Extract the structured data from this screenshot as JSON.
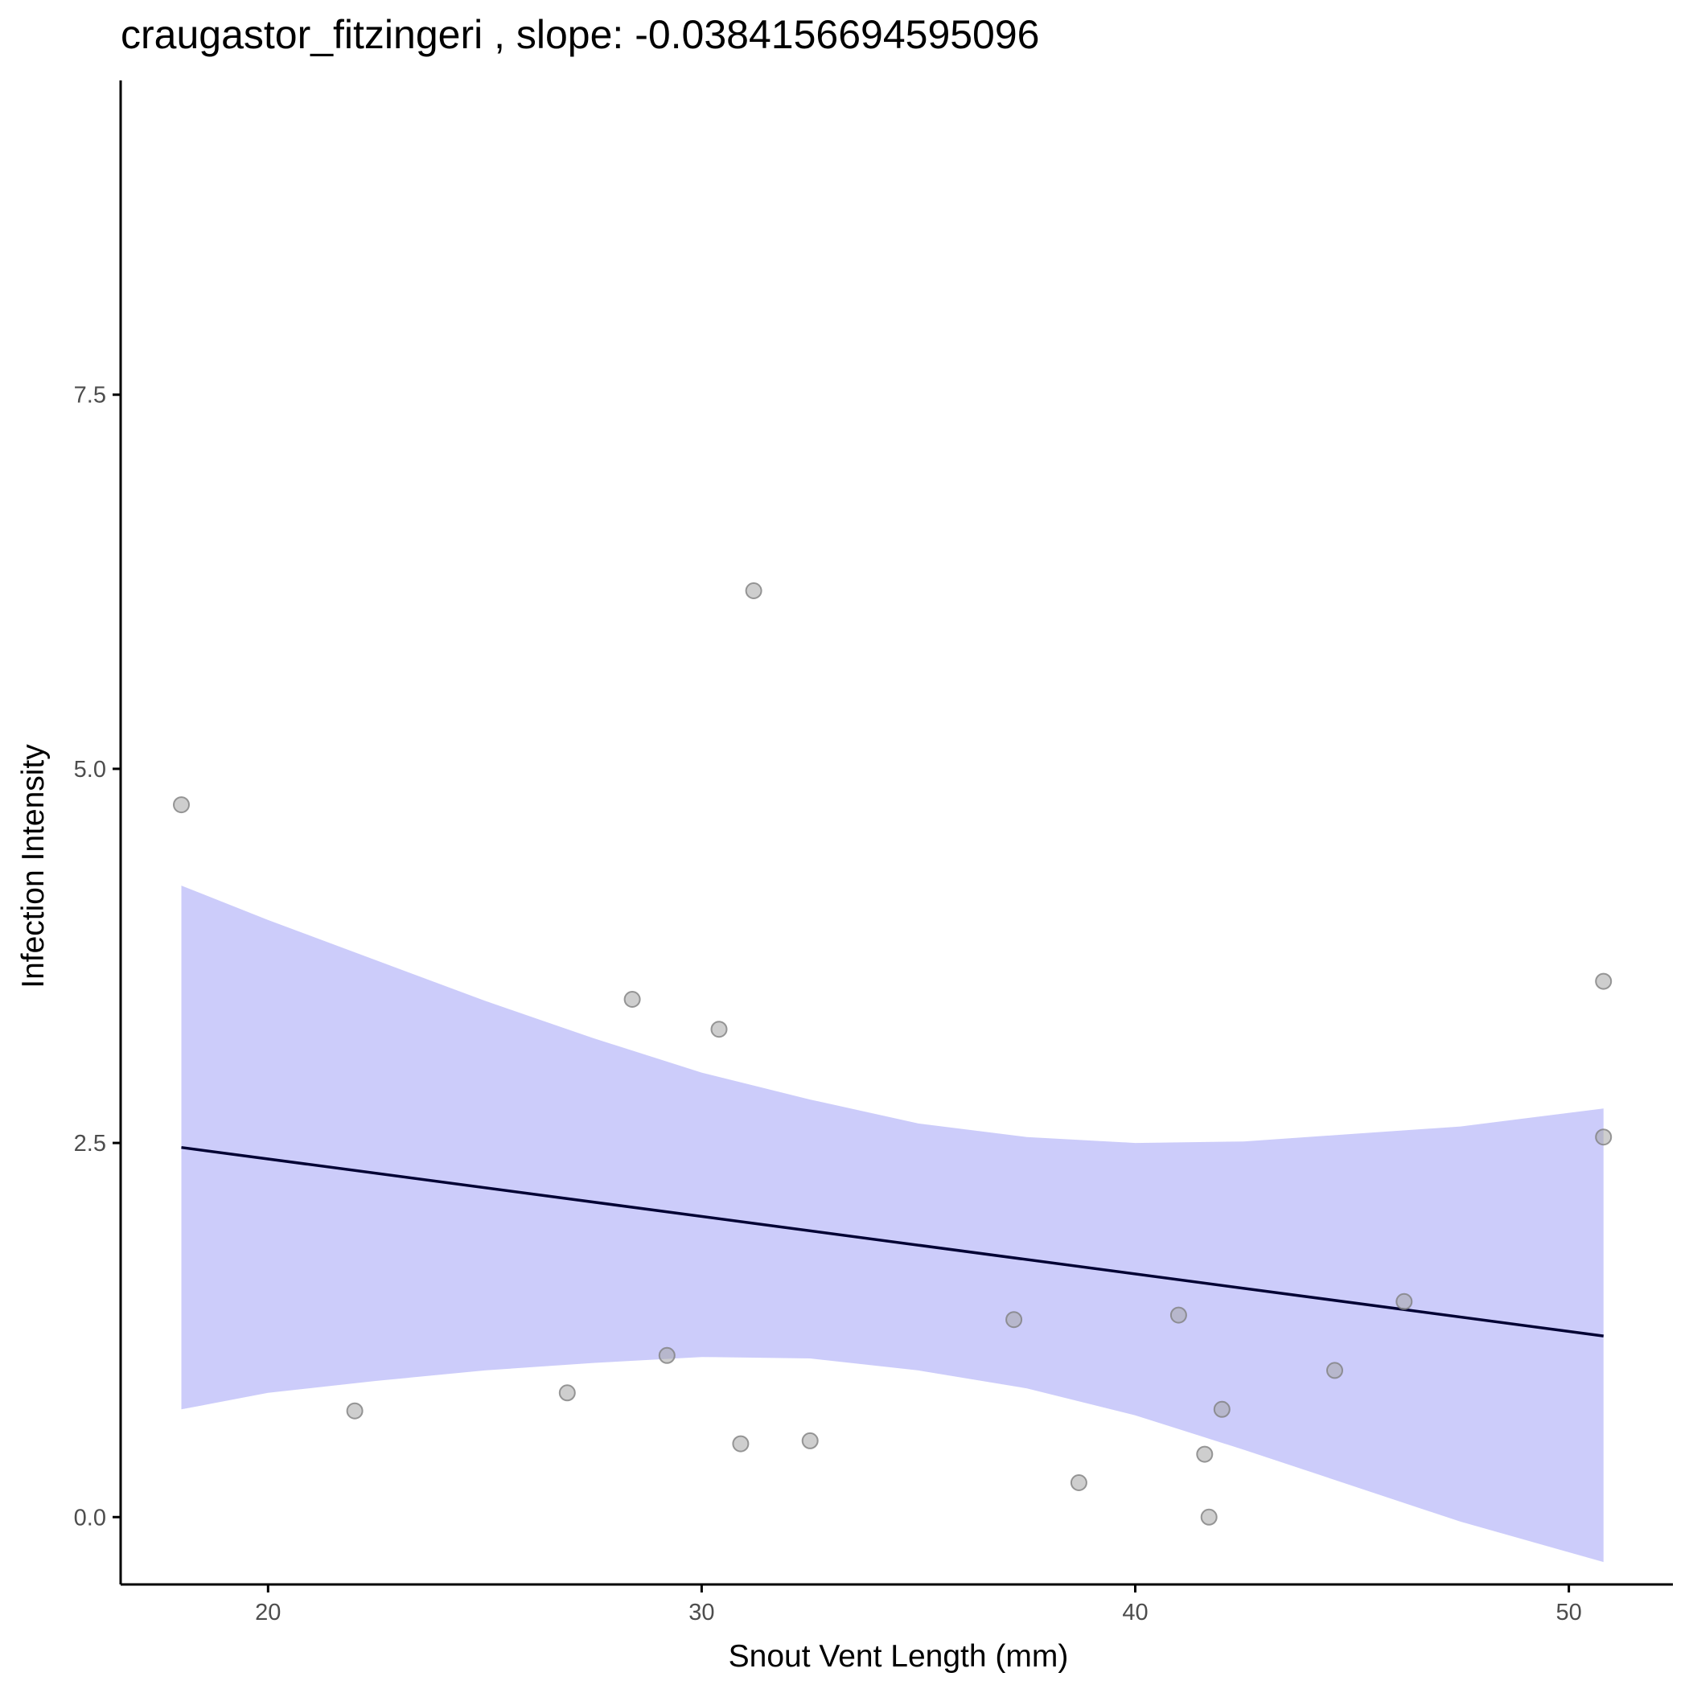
{
  "chart_data": {
    "type": "scatter",
    "title": "craugastor_fitzingeri , slope: -0.0384156694595096",
    "xlabel": "Snout Vent Length (mm)",
    "ylabel": "Infection Intensity",
    "xlim": [
      16.6,
      52.4
    ],
    "ylim": [
      -0.45,
      9.6
    ],
    "x_ticks": [
      20,
      30,
      40,
      50
    ],
    "x_tick_labels": [
      "20",
      "30",
      "40",
      "50"
    ],
    "y_ticks": [
      0.0,
      2.5,
      5.0,
      7.5
    ],
    "y_tick_labels": [
      "0.0",
      "2.5",
      "5.0",
      "7.5"
    ],
    "grid": false,
    "legend": "none",
    "points": [
      {
        "x": 18.0,
        "y": 4.76
      },
      {
        "x": 22.0,
        "y": 0.71
      },
      {
        "x": 26.9,
        "y": 0.83
      },
      {
        "x": 28.4,
        "y": 3.46
      },
      {
        "x": 29.2,
        "y": 1.08
      },
      {
        "x": 30.4,
        "y": 3.26
      },
      {
        "x": 30.9,
        "y": 0.49
      },
      {
        "x": 31.2,
        "y": 6.19
      },
      {
        "x": 32.5,
        "y": 0.51
      },
      {
        "x": 37.2,
        "y": 1.32
      },
      {
        "x": 38.7,
        "y": 0.23
      },
      {
        "x": 41.0,
        "y": 1.35
      },
      {
        "x": 41.6,
        "y": 0.42
      },
      {
        "x": 41.7,
        "y": 0.0
      },
      {
        "x": 42.0,
        "y": 0.72
      },
      {
        "x": 44.6,
        "y": 0.98
      },
      {
        "x": 46.2,
        "y": 1.44
      },
      {
        "x": 50.8,
        "y": 3.58
      },
      {
        "x": 50.8,
        "y": 2.54
      }
    ],
    "fit_line": {
      "x": [
        18.0,
        50.8
      ],
      "y": [
        2.47,
        1.21
      ]
    },
    "confidence_band": {
      "x": [
        18.0,
        20.0,
        22.5,
        25.0,
        27.5,
        30.0,
        32.5,
        35.0,
        37.5,
        40.0,
        42.5,
        45.0,
        47.5,
        50.8
      ],
      "lower": [
        0.72,
        0.83,
        0.91,
        0.98,
        1.03,
        1.07,
        1.06,
        0.98,
        0.86,
        0.68,
        0.45,
        0.21,
        -0.03,
        -0.3
      ],
      "upper": [
        4.22,
        3.99,
        3.72,
        3.45,
        3.2,
        2.97,
        2.79,
        2.63,
        2.54,
        2.5,
        2.51,
        2.56,
        2.61,
        2.73
      ]
    },
    "colors": {
      "points_fill": "#a6a6a6",
      "points_stroke": "#808080",
      "band_fill": "#8f8ff5",
      "line": "#000033",
      "axis": "#000000",
      "tick_label": "#4d4d4d"
    }
  }
}
